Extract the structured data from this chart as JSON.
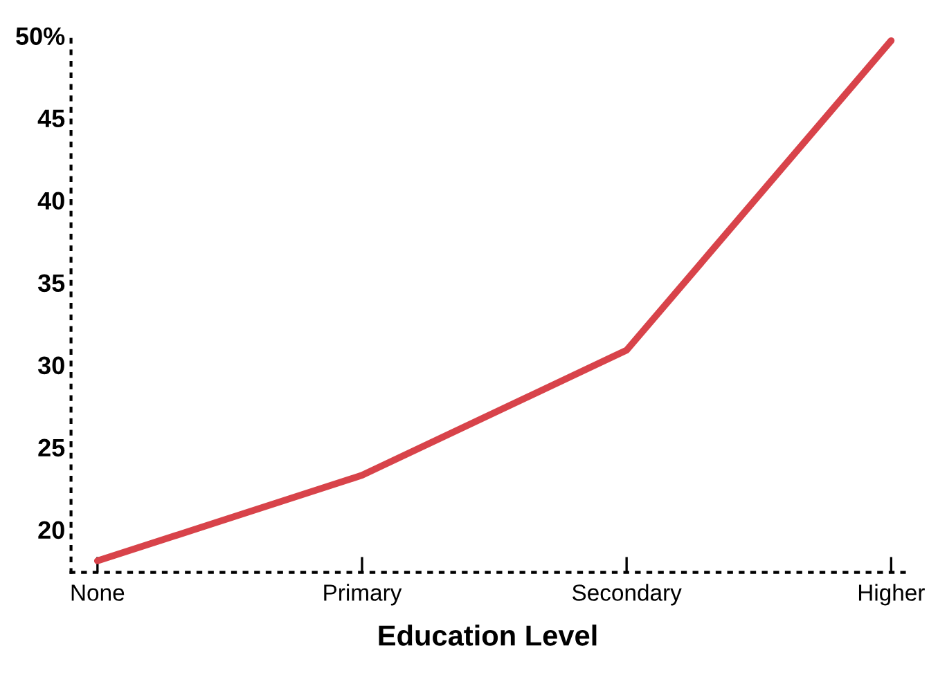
{
  "chart_data": {
    "type": "line",
    "xlabel": "Education Level",
    "categories": [
      "None",
      "Primary",
      "Secondary",
      "Higher"
    ],
    "series": [
      {
        "color": "#d8434a",
        "values": [
          18.1,
          23.3,
          30.9,
          49.7
        ]
      }
    ],
    "ylim": [
      17.4,
      50.2
    ],
    "yticks": [
      20,
      25,
      30,
      35,
      40,
      45,
      {
        "value": 50,
        "label": "50%"
      }
    ],
    "grid": false,
    "legend": false,
    "marker": "none",
    "line_style": "solid"
  }
}
